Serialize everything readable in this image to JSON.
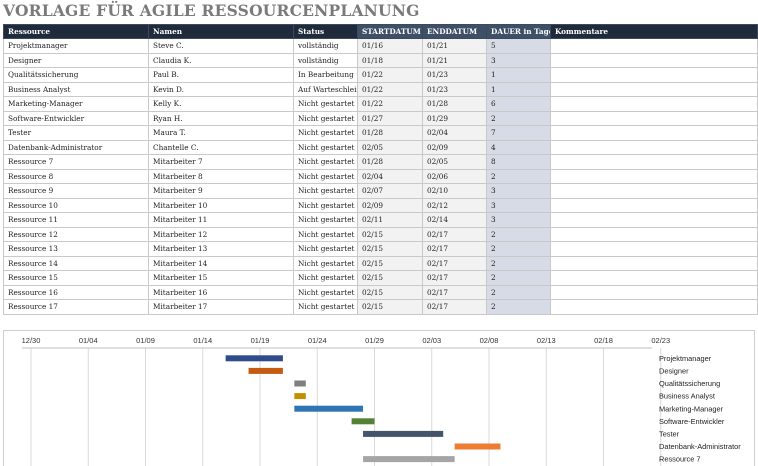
{
  "title": "VORLAGE FÜR AGILE RESSOURCENPLANUNG",
  "table": {
    "headers": [
      "Ressource",
      "Namen",
      "Status",
      "STARTDATUM",
      "ENDDATUM",
      "DAUER  in Tagen",
      "Kommentare"
    ],
    "rows": [
      [
        "Projektmanager",
        "Steve C.",
        "vollständig",
        "01/16",
        "01/21",
        "5",
        ""
      ],
      [
        "Designer",
        "Claudia K.",
        "vollständig",
        "01/18",
        "01/21",
        "3",
        ""
      ],
      [
        "Qualitätssicherung",
        "Paul B.",
        "In Bearbeitung",
        "01/22",
        "01/23",
        "1",
        ""
      ],
      [
        "Business Analyst",
        "Kevin D.",
        "Auf Warteschleife",
        "01/22",
        "01/23",
        "1",
        ""
      ],
      [
        "Marketing-Manager",
        "Kelly K.",
        "Nicht gestartet",
        "01/22",
        "01/28",
        "6",
        ""
      ],
      [
        "Software-Entwickler",
        "Ryan H.",
        "Nicht gestartet",
        "01/27",
        "01/29",
        "2",
        ""
      ],
      [
        "Tester",
        "Maura T.",
        "Nicht gestartet",
        "01/28",
        "02/04",
        "7",
        ""
      ],
      [
        "Datenbank-Administrator",
        "Chantelle C.",
        "Nicht gestartet",
        "02/05",
        "02/09",
        "4",
        ""
      ],
      [
        "Ressource 7",
        "Mitarbeiter 7",
        "Nicht gestartet",
        "01/28",
        "02/05",
        "8",
        ""
      ],
      [
        "Ressource 8",
        "Mitarbeiter 8",
        "Nicht gestartet",
        "02/04",
        "02/06",
        "2",
        ""
      ],
      [
        "Ressource 9",
        "Mitarbeiter 9",
        "Nicht gestartet",
        "02/07",
        "02/10",
        "3",
        ""
      ],
      [
        "Ressource 10",
        "Mitarbeiter 10",
        "Nicht gestartet",
        "02/09",
        "02/12",
        "3",
        ""
      ],
      [
        "Ressource 11",
        "Mitarbeiter 11",
        "Nicht gestartet",
        "02/11",
        "02/14",
        "3",
        ""
      ],
      [
        "Ressource 12",
        "Mitarbeiter 12",
        "Nicht gestartet",
        "02/15",
        "02/17",
        "2",
        ""
      ],
      [
        "Ressource 13",
        "Mitarbeiter 13",
        "Nicht gestartet",
        "02/15",
        "02/17",
        "2",
        ""
      ],
      [
        "Ressource 14",
        "Mitarbeiter 14",
        "Nicht gestartet",
        "02/15",
        "02/17",
        "2",
        ""
      ],
      [
        "Ressource 15",
        "Mitarbeiter 15",
        "Nicht gestartet",
        "02/15",
        "02/17",
        "2",
        ""
      ],
      [
        "Ressource 16",
        "Mitarbeiter 16",
        "Nicht gestartet",
        "02/15",
        "02/17",
        "2",
        ""
      ],
      [
        "Ressource 17",
        "Mitarbeiter 17",
        "Nicht gestartet",
        "02/15",
        "02/17",
        "2",
        ""
      ]
    ]
  },
  "chart_data": {
    "type": "bar",
    "orientation": "horizontal-gantt",
    "x_ticks": [
      "12/30",
      "01/04",
      "01/09",
      "01/14",
      "01/19",
      "01/24",
      "01/29",
      "02/03",
      "02/08",
      "02/13",
      "02/18",
      "02/23"
    ],
    "grid": true,
    "tasks": [
      {
        "label": "Projektmanager",
        "start": "01/16",
        "end": "01/21",
        "color": "#2f4b8c"
      },
      {
        "label": "Designer",
        "start": "01/18",
        "end": "01/21",
        "color": "#c55a11"
      },
      {
        "label": "Qualitätssicherung",
        "start": "01/22",
        "end": "01/23",
        "color": "#7f7f7f"
      },
      {
        "label": "Business Analyst",
        "start": "01/22",
        "end": "01/23",
        "color": "#bf9000"
      },
      {
        "label": "Marketing-Manager",
        "start": "01/22",
        "end": "01/28",
        "color": "#2e75b6"
      },
      {
        "label": "Software-Entwickler",
        "start": "01/27",
        "end": "01/29",
        "color": "#548235"
      },
      {
        "label": "Tester",
        "start": "01/28",
        "end": "02/04",
        "color": "#44546a"
      },
      {
        "label": "Datenbank-Administrator",
        "start": "02/05",
        "end": "02/09",
        "color": "#ed7d31"
      },
      {
        "label": "Ressource 7",
        "start": "01/28",
        "end": "02/05",
        "color": "#a5a5a5"
      }
    ]
  }
}
